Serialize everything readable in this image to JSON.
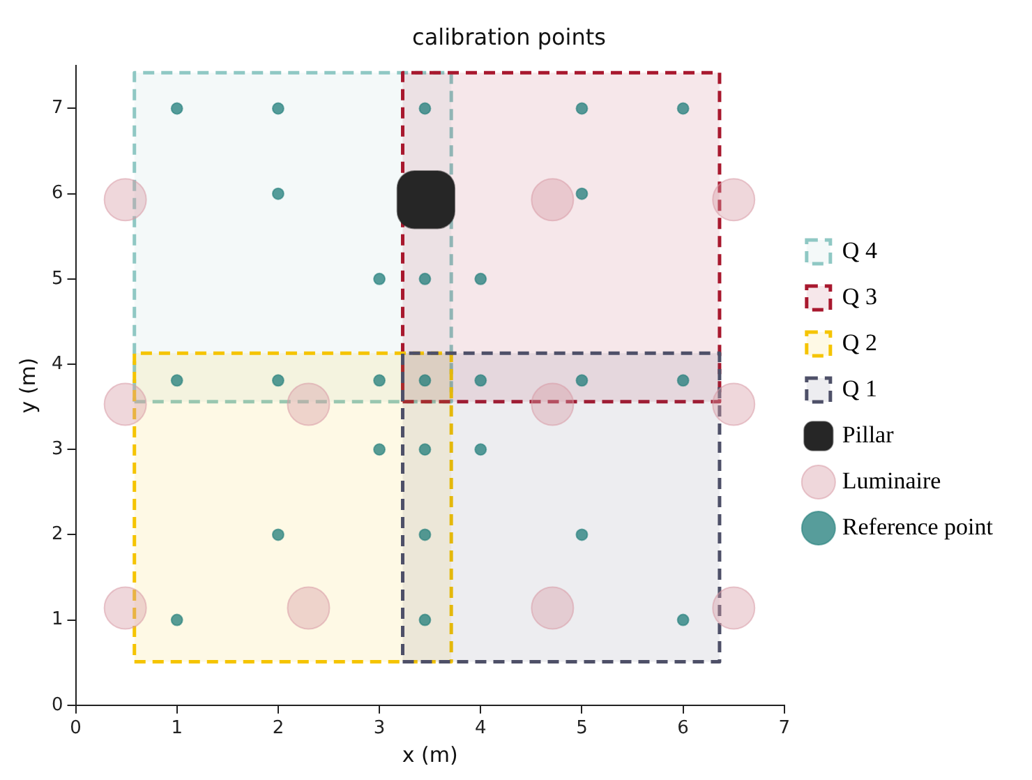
{
  "chart_data": {
    "type": "scatter",
    "title": "calibration points",
    "xlabel": "x (m)",
    "ylabel": "y (m)",
    "xlim": [
      0,
      7
    ],
    "xticks": [
      0,
      1,
      2,
      3,
      4,
      5,
      6,
      7
    ],
    "ylim": [
      0,
      7.5
    ],
    "yticks": [
      0,
      1,
      2,
      3,
      4,
      5,
      6,
      7
    ],
    "grid": false,
    "legend": "right",
    "series": [
      {
        "name": "Q 4",
        "type": "area",
        "color": "#8fc8c4",
        "line_style": "dashed",
        "marker": "none",
        "x": [
          0.58,
          3.71,
          3.71,
          0.58,
          0.58
        ],
        "values": [
          3.56,
          3.56,
          7.42,
          7.42,
          3.56
        ]
      },
      {
        "name": "Q 3",
        "type": "area",
        "color": "#a8182e",
        "line_style": "dashed",
        "marker": "none",
        "x": [
          3.23,
          6.36,
          6.36,
          3.23,
          3.23
        ],
        "values": [
          3.56,
          3.56,
          7.42,
          7.42,
          3.56
        ]
      },
      {
        "name": "Q 2",
        "type": "area",
        "color": "#f5c400",
        "line_style": "dashed",
        "marker": "none",
        "x": [
          0.58,
          3.71,
          3.71,
          0.58,
          0.58
        ],
        "values": [
          0.51,
          0.51,
          4.13,
          4.13,
          0.51
        ]
      },
      {
        "name": "Q 1",
        "type": "area",
        "color": "#4e5068",
        "line_style": "dashed",
        "marker": "none",
        "x": [
          3.23,
          6.36,
          6.36,
          3.23,
          3.23
        ],
        "values": [
          0.51,
          0.51,
          4.13,
          4.13,
          0.51
        ]
      },
      {
        "name": "Pillar",
        "type": "scatter",
        "color": "#262626",
        "marker": "square",
        "x": [
          3.46
        ],
        "values": [
          5.93
        ]
      },
      {
        "name": "Luminaire",
        "type": "scatter",
        "color": "#d89aa5",
        "marker": "circle",
        "x": [
          0.49,
          4.71,
          6.5,
          0.49,
          2.3,
          4.71,
          6.5,
          0.49,
          2.3,
          4.71,
          6.5
        ],
        "values": [
          5.93,
          5.93,
          5.93,
          3.53,
          3.53,
          3.53,
          3.53,
          1.14,
          1.14,
          1.14,
          1.14
        ]
      },
      {
        "name": "Reference point",
        "type": "scatter",
        "color": "#1a7a76",
        "marker": "circle",
        "x": [
          1,
          2,
          3.45,
          5,
          6,
          2,
          5,
          3,
          3.45,
          4,
          1,
          2,
          3,
          3.45,
          4,
          5,
          6,
          3,
          3.45,
          4,
          2,
          3.45,
          5,
          1,
          3.45,
          6
        ],
        "values": [
          7,
          7,
          7,
          7,
          7,
          6,
          6,
          5,
          5,
          5,
          3.81,
          3.81,
          3.81,
          3.81,
          3.81,
          3.81,
          3.81,
          3,
          3,
          3,
          2,
          2,
          2,
          1,
          1,
          1
        ]
      }
    ]
  }
}
